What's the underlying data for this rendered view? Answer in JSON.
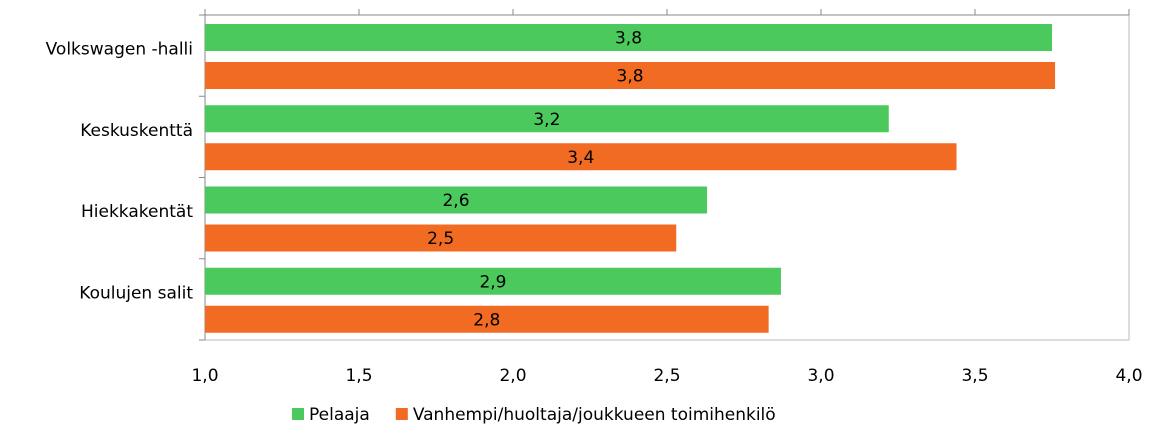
{
  "chart_data": {
    "type": "bar",
    "orientation": "horizontal",
    "categories": [
      "Volkswagen -halli",
      "Keskuskenttä",
      "Hiekkakentät",
      "Koulujen salit"
    ],
    "series": [
      {
        "name": "Pelaaja",
        "color": "#4cc95d",
        "values": [
          3.75,
          3.22,
          2.63,
          2.87
        ],
        "value_labels": [
          "3,8",
          "3,2",
          "2,6",
          "2,9"
        ]
      },
      {
        "name": "Vanhempi/huoltaja/joukkueen toimihenkilö",
        "color": "#f26b22",
        "values": [
          3.76,
          3.44,
          2.53,
          2.83
        ],
        "value_labels": [
          "3,8",
          "3,4",
          "2,5",
          "2,8"
        ]
      }
    ],
    "xlim": [
      1.0,
      4.0
    ],
    "xticks": [
      {
        "value": 1.0,
        "label": "1,0"
      },
      {
        "value": 1.5,
        "label": "1,5"
      },
      {
        "value": 2.0,
        "label": "2,0"
      },
      {
        "value": 2.5,
        "label": "2,5"
      },
      {
        "value": 3.0,
        "label": "3,0"
      },
      {
        "value": 3.5,
        "label": "3,5"
      },
      {
        "value": 4.0,
        "label": "4,0"
      }
    ],
    "legend": "bottom"
  }
}
